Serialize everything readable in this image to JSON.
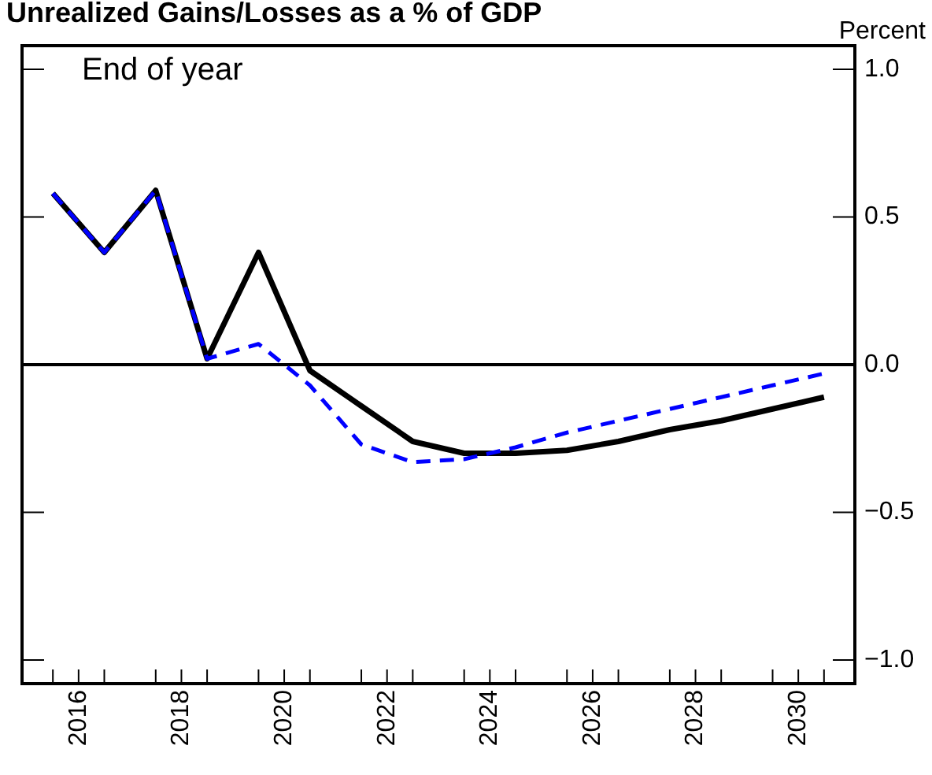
{
  "chart_data": {
    "type": "line",
    "title": "Unrealized Gains/Losses as a % of GDP",
    "ylabel": "Percent",
    "annotations": [
      "End of year"
    ],
    "x": [
      2015.5,
      2016.5,
      2017.5,
      2018.5,
      2019.5,
      2020.5,
      2021.5,
      2022.5,
      2023.5,
      2024.5,
      2025.5,
      2026.5,
      2027.5,
      2028.5,
      2029.5,
      2030.5
    ],
    "series": [
      {
        "color": "#000000",
        "line_style": "solid",
        "values": [
          0.58,
          0.38,
          0.59,
          0.02,
          0.38,
          -0.02,
          -0.14,
          -0.26,
          -0.3,
          -0.3,
          -0.29,
          -0.26,
          -0.22,
          -0.19,
          -0.15,
          -0.11
        ]
      },
      {
        "color": "#0000ff",
        "line_style": "dashed",
        "values": [
          0.58,
          0.38,
          0.59,
          0.02,
          0.07,
          -0.07,
          -0.27,
          -0.33,
          -0.32,
          -0.28,
          -0.23,
          -0.19,
          -0.15,
          -0.11,
          -0.07,
          -0.03
        ]
      }
    ],
    "xlim": [
      2014.9,
      2031.1
    ],
    "xticks": [
      {
        "value": 2015.5,
        "label": null
      },
      {
        "value": 2016,
        "label": "2016"
      },
      {
        "value": 2016.5,
        "label": null
      },
      {
        "value": 2017.5,
        "label": null
      },
      {
        "value": 2018,
        "label": "2018"
      },
      {
        "value": 2018.5,
        "label": null
      },
      {
        "value": 2019.5,
        "label": null
      },
      {
        "value": 2020,
        "label": "2020"
      },
      {
        "value": 2020.5,
        "label": null
      },
      {
        "value": 2021.5,
        "label": null
      },
      {
        "value": 2022,
        "label": "2022"
      },
      {
        "value": 2022.5,
        "label": null
      },
      {
        "value": 2023.5,
        "label": null
      },
      {
        "value": 2024,
        "label": "2024"
      },
      {
        "value": 2024.5,
        "label": null
      },
      {
        "value": 2025.5,
        "label": null
      },
      {
        "value": 2026,
        "label": "2026"
      },
      {
        "value": 2026.5,
        "label": null
      },
      {
        "value": 2027.5,
        "label": null
      },
      {
        "value": 2028,
        "label": "2028"
      },
      {
        "value": 2028.5,
        "label": null
      },
      {
        "value": 2029.5,
        "label": null
      },
      {
        "value": 2030,
        "label": "2030"
      },
      {
        "value": 2030.5,
        "label": null
      }
    ],
    "ylim": [
      -1.08,
      1.08
    ],
    "yticks": [
      {
        "value": -1,
        "label": "−1.0"
      },
      {
        "value": -0.5,
        "label": "−0.5"
      },
      {
        "value": 0,
        "label": "0.0"
      },
      {
        "value": 0.5,
        "label": "0.5"
      },
      {
        "value": 1,
        "label": "1.0"
      }
    ],
    "ref_lines": [
      {
        "axis": "y",
        "value": 0,
        "color": "#000000"
      }
    ],
    "grid": false,
    "legend": false,
    "marker": "none"
  }
}
